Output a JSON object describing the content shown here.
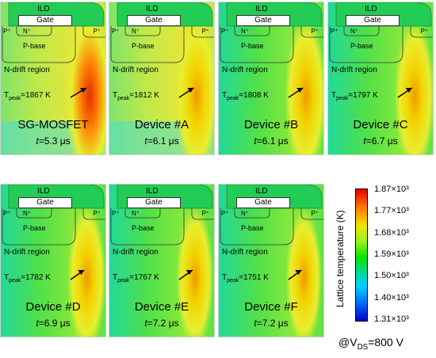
{
  "labels": {
    "ild": "ILD",
    "gate": "Gate",
    "p_plus_left": "P⁺",
    "n_plus": "N⁺",
    "p_plus_right": "P⁺",
    "p_base": "P-base",
    "n_drift": "N-drift region",
    "t": "T",
    "peak": "peak",
    "time_var": "t"
  },
  "panels": [
    {
      "device": "SG-MOSFET",
      "t_peak": "=1867 K",
      "time": "=5.3 μs",
      "hot_level": 1.0,
      "field": "warm"
    },
    {
      "device": "Device #A",
      "t_peak": "=1812 K",
      "time": "=6.1 μs",
      "hot_level": 0.8,
      "field": "warm"
    },
    {
      "device": "Device #B",
      "t_peak": "=1808 K",
      "time": "=6.1 μs",
      "hot_level": 0.78,
      "field": "cool"
    },
    {
      "device": "Device #C",
      "t_peak": "=1797 K",
      "time": "=6.7 μs",
      "hot_level": 0.72,
      "field": "cool"
    },
    {
      "device": "Device #D",
      "t_peak": "=1782 K",
      "time": "=6.9 μs",
      "hot_level": 0.65,
      "field": "cool"
    },
    {
      "device": "Device #E",
      "t_peak": "=1767 K",
      "time": "=7.2 μs",
      "hot_level": 0.6,
      "field": "cool"
    },
    {
      "device": "Device #F",
      "t_peak": "=1751 K",
      "time": "=7.2 μs",
      "hot_level": 0.55,
      "field": "cool"
    }
  ],
  "legend": {
    "title": "Lattice temperature (K)",
    "ticks": [
      "1.87×10³",
      "1.77×10³",
      "1.68×10³",
      "1.59×10³",
      "1.50×10³",
      "1.40×10³",
      "1.31×10³"
    ],
    "colors": [
      "#e00000",
      "#ff7a00",
      "#f2e600",
      "#9af21a",
      "#00e600",
      "#00d7a0",
      "#00cfff",
      "#0070ff",
      "#0000c8"
    ]
  },
  "condition": {
    "prefix": "@V",
    "sub": "DS",
    "value": "=800 V"
  }
}
